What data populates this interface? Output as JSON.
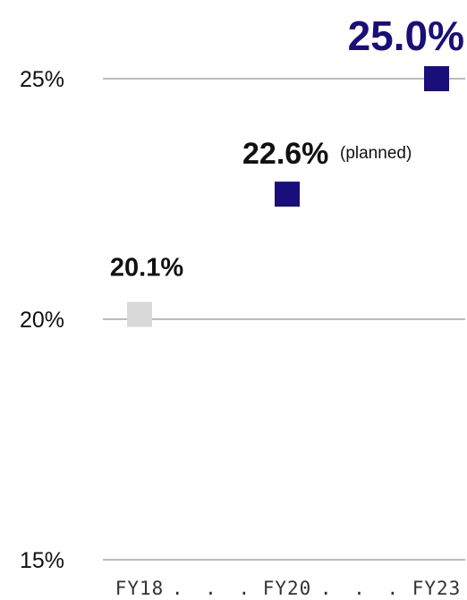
{
  "chart_data": {
    "type": "scatter",
    "categories": [
      "FY18",
      "FY20",
      "FY23"
    ],
    "values": [
      20.1,
      22.6,
      25.0
    ],
    "data_labels": [
      "20.1%",
      "22.6%",
      "25.0%"
    ],
    "point_notes": [
      "",
      "(planned)",
      ""
    ],
    "y_ticks": [
      "15%",
      "20%",
      "25%"
    ],
    "y_tick_values": [
      15,
      20,
      25
    ],
    "ylim": [
      15,
      25
    ],
    "x_separator": ". . .",
    "grid": true,
    "colors": {
      "actual": "#d9d9d9",
      "target": "#1a0f7a",
      "highlight_label": "#1a0f7a",
      "grid": "#a6a6a6",
      "text": "#111111"
    },
    "point_colors": [
      "#d9d9d9",
      "#1a0f7a",
      "#1a0f7a"
    ]
  }
}
